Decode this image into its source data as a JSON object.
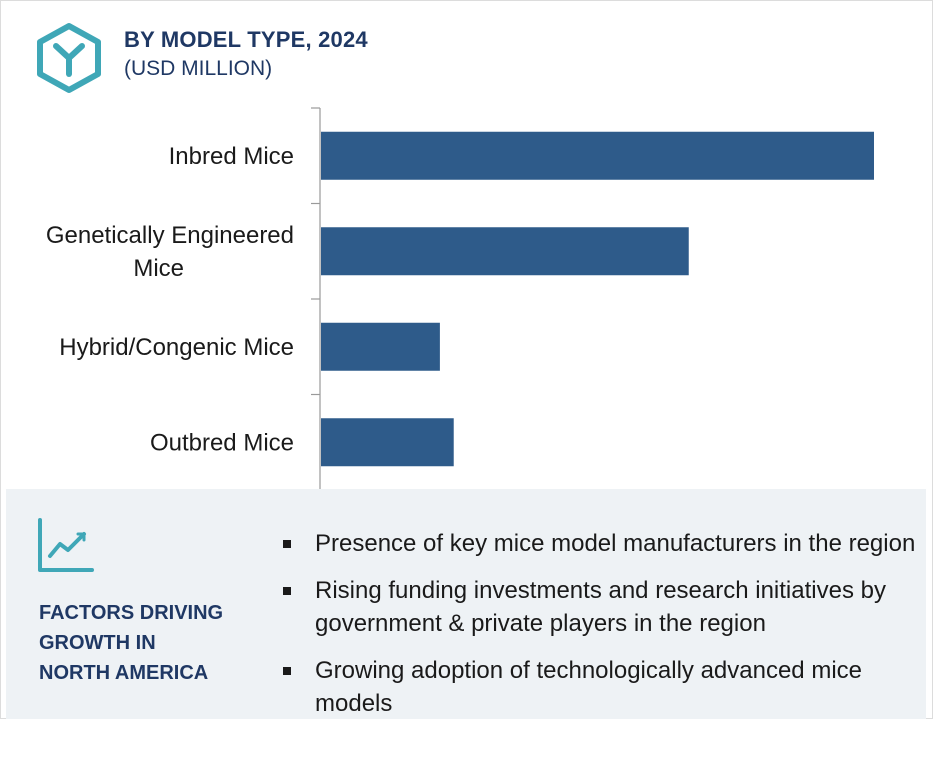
{
  "header": {
    "title": "BY MODEL TYPE, 2024",
    "subtitle": "(USD MILLION)",
    "icon": "hexagon-y-logo-icon"
  },
  "chart_data": {
    "type": "bar",
    "orientation": "horizontal",
    "categories": [
      [
        "Inbred Mice"
      ],
      [
        "Genetically Engineered",
        "Mice"
      ],
      [
        "Hybrid/Congenic Mice"
      ],
      [
        "Outbred Mice"
      ]
    ],
    "values": [
      100,
      66.5,
      21.5,
      24
    ],
    "bar_color": "#2e5b8a",
    "title": "BY MODEL TYPE, 2024",
    "subtitle": "(USD MILLION)",
    "grid": false
  },
  "factors": {
    "icon": "trend-line-icon",
    "title_lines": [
      "FACTORS DRIVING",
      "GROWTH IN",
      "NORTH AMERICA"
    ],
    "bullets": [
      "Presence of key mice model manufacturers in the region",
      "Rising funding investments and research initiatives by government & private players in the region",
      "Growing adoption of technologically advanced mice models"
    ]
  },
  "colors": {
    "accent_teal": "#3fa7b7",
    "title_navy": "#1f3864",
    "panel_bg": "#eef2f5"
  }
}
